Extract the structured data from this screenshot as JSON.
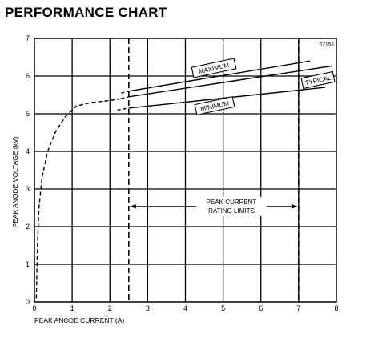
{
  "title": "PERFORMANCE CHART",
  "chart_data": {
    "type": "line",
    "title": "PERFORMANCE CHART",
    "code": "57158",
    "xlabel": "PEAK ANODE CURRENT (A)",
    "ylabel": "PEAK ANODE VOLTAGE (kV)",
    "xlim": [
      0,
      8
    ],
    "ylim": [
      0,
      7
    ],
    "x_ticks": [
      "0",
      "1",
      "2",
      "3",
      "4",
      "5",
      "6",
      "7",
      "8"
    ],
    "y_ticks": [
      "0",
      "1",
      "2",
      "3",
      "4",
      "5",
      "6",
      "7"
    ],
    "grid": true,
    "series": [
      {
        "name": "MAXIMUM",
        "style": "solid",
        "points": [
          [
            2.5,
            5.6
          ],
          [
            7.3,
            6.4
          ]
        ],
        "dashed_start": [
          [
            2.3,
            5.55
          ],
          [
            2.5,
            5.6
          ]
        ]
      },
      {
        "name": "TYPICAL",
        "style": "solid",
        "points": [
          [
            2.5,
            5.45
          ],
          [
            7.9,
            6.27
          ]
        ],
        "dashed_start": [
          [
            2.3,
            5.4
          ],
          [
            2.5,
            5.45
          ]
        ]
      },
      {
        "name": "MINIMUM",
        "style": "solid",
        "points": [
          [
            2.5,
            5.15
          ],
          [
            7.7,
            5.7
          ]
        ],
        "dashed_start": [
          [
            2.2,
            5.1
          ],
          [
            2.5,
            5.15
          ]
        ]
      },
      {
        "name": "",
        "style": "dashed",
        "points": [
          [
            0.05,
            0.1
          ],
          [
            0.08,
            1.5
          ],
          [
            0.12,
            2.5
          ],
          [
            0.2,
            3.3
          ],
          [
            0.35,
            4.0
          ],
          [
            0.55,
            4.5
          ],
          [
            0.8,
            4.9
          ],
          [
            1.1,
            5.2
          ],
          [
            1.5,
            5.3
          ],
          [
            2.0,
            5.35
          ],
          [
            2.3,
            5.4
          ]
        ]
      }
    ],
    "limit_lines_x": [
      2.5,
      7.0
    ],
    "annotation": {
      "line1": "PEAK CURRENT",
      "line2": "RATING LIMITS",
      "y": 2.6
    },
    "series_labels": {
      "maximum": "MAXIMUM",
      "typical": "TYPICAL",
      "minimum": "MINIMUM"
    }
  }
}
